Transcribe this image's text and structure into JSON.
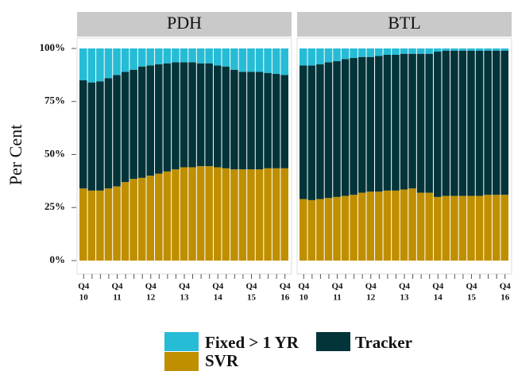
{
  "chart_data": [
    {
      "type": "bar",
      "stacked": true,
      "title": "PDH",
      "y_label": "Per Cent",
      "categories": [
        [
          "Q4",
          "10"
        ],
        null,
        null,
        null,
        [
          "Q4",
          "11"
        ],
        null,
        null,
        null,
        [
          "Q4",
          "12"
        ],
        null,
        null,
        null,
        [
          "Q4",
          "13"
        ],
        null,
        null,
        null,
        [
          "Q4",
          "14"
        ],
        null,
        null,
        null,
        [
          "Q4",
          "15"
        ],
        null,
        null,
        null,
        [
          "Q4",
          "16"
        ]
      ],
      "series": [
        {
          "name": "SVR",
          "color": "#bf8f00",
          "values": [
            34,
            33,
            33,
            34,
            35,
            37,
            38.5,
            39,
            40,
            41,
            42,
            43,
            44,
            44,
            44.5,
            44.5,
            44,
            43.5,
            43,
            43,
            43,
            43,
            43.5,
            43.5,
            43.5
          ]
        },
        {
          "name": "Tracker",
          "color": "#02343a",
          "values": [
            51,
            51,
            51.5,
            52,
            52.5,
            52,
            51.5,
            52.5,
            52,
            51.5,
            51,
            50.5,
            49.5,
            49.5,
            48.5,
            48.5,
            48,
            48,
            47,
            46,
            46,
            46,
            45,
            44.5,
            44
          ]
        },
        {
          "name": "Fixed > 1 YR",
          "color": "#27bcd6",
          "values": [
            15,
            16,
            15.5,
            14,
            12.5,
            11,
            10,
            8.5,
            8,
            7.5,
            7,
            6.5,
            6.5,
            6.5,
            7,
            7,
            8,
            8.5,
            10,
            11,
            11,
            11,
            11.5,
            12,
            12.5
          ]
        }
      ],
      "ylim": [
        0,
        100
      ],
      "yticks": [
        {
          "value": 0,
          "label": "0%"
        },
        {
          "value": 25,
          "label": "25%"
        },
        {
          "value": 50,
          "label": "50%"
        },
        {
          "value": 75,
          "label": "75%"
        },
        {
          "value": 100,
          "label": "100%"
        }
      ]
    },
    {
      "type": "bar",
      "stacked": true,
      "title": "BTL",
      "categories": [
        [
          "Q4",
          "10"
        ],
        null,
        null,
        null,
        [
          "Q4",
          "11"
        ],
        null,
        null,
        null,
        [
          "Q4",
          "12"
        ],
        null,
        null,
        null,
        [
          "Q4",
          "13"
        ],
        null,
        null,
        null,
        [
          "Q4",
          "14"
        ],
        null,
        null,
        null,
        [
          "Q4",
          "15"
        ],
        null,
        null,
        null,
        [
          "Q4",
          "16"
        ]
      ],
      "series": [
        {
          "color": "#bf8f00",
          "values": [
            29,
            28.5,
            29,
            29.5,
            30,
            30.5,
            31,
            32,
            32.5,
            32.5,
            33,
            33,
            33.5,
            34,
            32,
            32,
            30,
            30.5,
            30.5,
            30.5,
            30.5,
            30.5,
            31,
            31,
            31
          ]
        },
        {
          "color": "#02343a",
          "values": [
            63,
            63.5,
            63.5,
            64,
            64,
            64.5,
            64.5,
            64,
            63.5,
            64,
            64,
            64,
            64,
            63.5,
            65.5,
            65.5,
            68.5,
            68.5,
            68.5,
            68.5,
            68.5,
            68.5,
            68,
            68,
            68
          ]
        },
        {
          "color": "#27bcd6",
          "values": [
            8,
            8,
            7.5,
            6.5,
            6,
            5,
            4.5,
            4,
            4,
            3.5,
            3,
            3,
            2.5,
            2.5,
            2.5,
            2.5,
            1.5,
            1,
            1,
            1,
            1,
            1,
            1,
            1,
            1
          ]
        }
      ],
      "ylim": [
        0,
        100
      ]
    }
  ]
}
